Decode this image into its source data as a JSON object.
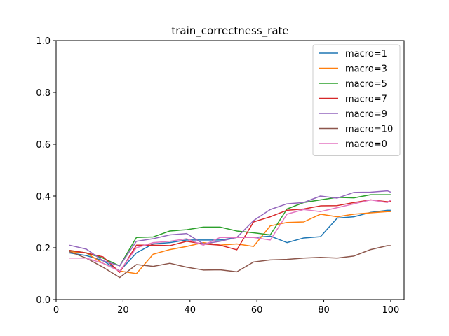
{
  "chart_data": {
    "type": "line",
    "title": "train_correctness_rate",
    "xlabel": "",
    "ylabel": "",
    "xlim": [
      0,
      104
    ],
    "ylim": [
      0,
      1.0
    ],
    "xticks": [
      0,
      20,
      40,
      60,
      80,
      100
    ],
    "yticks": [
      0.0,
      0.2,
      0.4,
      0.6,
      0.8,
      1.0
    ],
    "xtick_labels": [
      "0",
      "20",
      "40",
      "60",
      "80",
      "100"
    ],
    "ytick_labels": [
      "0.0",
      "0.2",
      "0.4",
      "0.6",
      "0.8",
      "1.0"
    ],
    "grid": false,
    "legend_position": "top-right",
    "x": [
      4,
      9,
      14,
      19,
      24,
      29,
      34,
      39,
      44,
      49,
      54,
      59,
      64,
      69,
      74,
      79,
      84,
      89,
      94,
      99,
      100
    ],
    "series": [
      {
        "name": "macro=1",
        "color": "#1f77b4",
        "values": [
          0.18,
          0.17,
          0.15,
          0.11,
          0.18,
          0.215,
          0.22,
          0.23,
          0.23,
          0.23,
          0.24,
          0.24,
          0.245,
          0.22,
          0.238,
          0.243,
          0.315,
          0.32,
          0.337,
          0.345,
          0.345
        ]
      },
      {
        "name": "macro=3",
        "color": "#ff7f0e",
        "values": [
          0.185,
          0.18,
          0.14,
          0.11,
          0.1,
          0.175,
          0.193,
          0.205,
          0.22,
          0.21,
          0.215,
          0.205,
          0.285,
          0.298,
          0.3,
          0.33,
          0.32,
          0.33,
          0.335,
          0.34,
          0.34
        ]
      },
      {
        "name": "macro=5",
        "color": "#2ca02c",
        "values": [
          0.19,
          0.18,
          0.16,
          0.13,
          0.24,
          0.242,
          0.265,
          0.27,
          0.28,
          0.28,
          0.265,
          0.258,
          0.25,
          0.35,
          0.375,
          0.385,
          0.395,
          0.393,
          0.405,
          0.405,
          0.405
        ]
      },
      {
        "name": "macro=7",
        "color": "#d62728",
        "values": [
          0.19,
          0.18,
          0.165,
          0.105,
          0.21,
          0.21,
          0.208,
          0.225,
          0.215,
          0.21,
          0.192,
          0.3,
          0.32,
          0.345,
          0.35,
          0.362,
          0.363,
          0.375,
          0.385,
          0.378,
          0.38
        ]
      },
      {
        "name": "macro=9",
        "color": "#9467bd",
        "values": [
          0.21,
          0.195,
          0.15,
          0.13,
          0.225,
          0.235,
          0.25,
          0.255,
          0.215,
          0.225,
          0.24,
          0.305,
          0.348,
          0.37,
          0.375,
          0.4,
          0.392,
          0.414,
          0.415,
          0.42,
          0.415
        ]
      },
      {
        "name": "macro=10",
        "color": "#8c564b",
        "values": [
          0.185,
          0.16,
          0.125,
          0.085,
          0.135,
          0.128,
          0.14,
          0.125,
          0.114,
          0.115,
          0.107,
          0.145,
          0.153,
          0.155,
          0.16,
          0.163,
          0.16,
          0.168,
          0.193,
          0.208,
          0.208
        ]
      },
      {
        "name": "macro=0",
        "color": "#e377c2",
        "values": [
          0.16,
          0.16,
          0.14,
          0.11,
          0.2,
          0.22,
          0.225,
          0.235,
          0.21,
          0.24,
          0.24,
          0.24,
          0.23,
          0.33,
          0.348,
          0.34,
          0.355,
          0.37,
          0.385,
          0.375,
          0.385
        ]
      }
    ]
  }
}
